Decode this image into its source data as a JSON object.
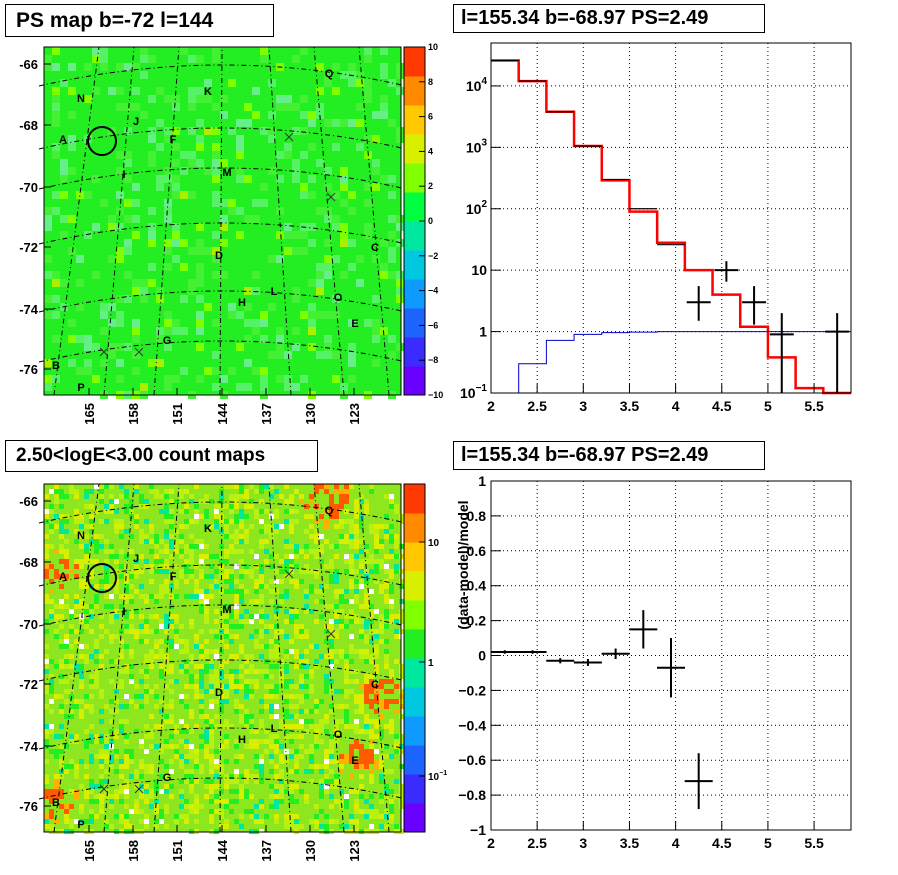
{
  "panels": {
    "ps_map": {
      "title": "PS map b=-72 l=144"
    },
    "spectrum": {
      "title": "l=155.34 b=-68.97 PS=2.49"
    },
    "count_map": {
      "title": "2.50<logE<3.00 count maps"
    },
    "residual": {
      "title": "l=155.34 b=-68.97 PS=2.49"
    }
  },
  "chart_data": [
    {
      "type": "heatmap",
      "title": "PS map b=-72 l=144",
      "map_y_ticks": [
        "-66",
        "-68",
        "-70",
        "-72",
        "-74",
        "-76"
      ],
      "map_y_values": [
        -66,
        -68,
        -70,
        -72,
        -74,
        -76
      ],
      "map_x_ticks": [
        "165",
        "158",
        "151",
        "144",
        "137",
        "130",
        "123"
      ],
      "colorbar": {
        "scale": "linear",
        "range": [
          -10,
          10
        ],
        "ticks": [
          "10",
          "8",
          "6",
          "4",
          "2",
          "0",
          "−2",
          "−4",
          "−6",
          "−8",
          "−10"
        ],
        "colors": [
          "#6a00ff",
          "#3a2cff",
          "#1e64ff",
          "#0f9aff",
          "#00c8e0",
          "#00e8a0",
          "#00ff40",
          "#7fff00",
          "#d8f000",
          "#ffc800",
          "#ff8a00",
          "#ff3a00"
        ],
        "background": "#22ee22"
      },
      "region_labels": [
        "Q",
        "N",
        "K",
        "A",
        "J",
        "F",
        "I",
        "M",
        "C",
        "D",
        "L",
        "O",
        "H",
        "E",
        "B",
        "G",
        "P"
      ],
      "markers": "x"
    },
    {
      "type": "line",
      "title": "l=155.34 b=-68.97 PS=2.49",
      "y_scale": "log",
      "xlim": [
        2,
        5.9
      ],
      "ylim": [
        0.1,
        50000
      ],
      "x_ticks": [
        "2",
        "2.5",
        "3",
        "3.5",
        "4",
        "4.5",
        "5",
        "5.5"
      ],
      "y_ticks": [
        "10^{-1}",
        "1",
        "10",
        "10^{2}",
        "10^{3}",
        "10^{4}"
      ],
      "bin_edges": [
        2.0,
        2.3,
        2.6,
        2.9,
        3.2,
        3.5,
        3.8,
        4.1,
        4.4,
        4.7,
        5.0,
        5.3,
        5.6,
        5.9
      ],
      "series": [
        {
          "color": "#ff0000",
          "values": [
            26000,
            12000,
            3800,
            1050,
            290,
            90,
            28,
            10,
            4,
            1.2,
            0.38,
            0.12,
            0.04
          ]
        },
        {
          "color": "#000000",
          "values": [
            26000,
            12000,
            3800,
            1050,
            300,
            100,
            26,
            10,
            3,
            3,
            0.8,
            1.0,
            0.7
          ]
        },
        {
          "color": "#0000cc",
          "values": [
            0.07,
            0.3,
            0.72,
            0.9,
            0.96,
            0.98,
            1.0,
            1.0,
            1.0,
            1.0,
            1.0,
            1.0,
            1.0
          ]
        }
      ],
      "data_points": [
        {
          "x": 4.25,
          "y": 3,
          "y_low": 1.5,
          "y_high": 5.5
        },
        {
          "x": 4.55,
          "y": 10,
          "y_low": 6.5,
          "y_high": 14
        },
        {
          "x": 4.85,
          "y": 3,
          "y_low": 1.3,
          "y_high": 5.5
        },
        {
          "x": 5.15,
          "y": 0.9,
          "y_low": 0.1,
          "y_high": 2.0
        },
        {
          "x": 5.75,
          "y": 1.0,
          "y_low": 0.1,
          "y_high": 2.0
        }
      ],
      "grid": true
    },
    {
      "type": "heatmap",
      "title": "2.50<logE<3.00 count maps",
      "map_y_ticks": [
        "-66",
        "-68",
        "-70",
        "-72",
        "-74",
        "-76"
      ],
      "map_y_values": [
        -66,
        -68,
        -70,
        -72,
        -74,
        -76
      ],
      "map_x_ticks": [
        "165",
        "158",
        "151",
        "144",
        "137",
        "130",
        "123"
      ],
      "colorbar": {
        "scale": "log",
        "ticks": [
          "10",
          "1",
          "10^{-1}"
        ],
        "colors": [
          "#6a00ff",
          "#3a2cff",
          "#1e64ff",
          "#0f9aff",
          "#00c8e0",
          "#00e8a0",
          "#22ee22",
          "#7fff00",
          "#d8f000",
          "#ffc800",
          "#ff8a00",
          "#ff3a00"
        ],
        "background": "#8ee61e"
      },
      "region_labels": [
        "Q",
        "N",
        "K",
        "A",
        "J",
        "F",
        "I",
        "M",
        "C",
        "D",
        "L",
        "O",
        "H",
        "E",
        "B",
        "G",
        "P"
      ],
      "markers": "x"
    },
    {
      "type": "scatter",
      "title": "l=155.34 b=-68.97 PS=2.49",
      "ylabel": "(data-model)/model",
      "xlim": [
        2,
        5.9
      ],
      "ylim": [
        -1,
        1
      ],
      "x_ticks": [
        "2",
        "2.5",
        "3",
        "3.5",
        "4",
        "4.5",
        "5",
        "5.5"
      ],
      "y_ticks": [
        "1",
        "0.8",
        "0.6",
        "0.4",
        "0.2",
        "0",
        "−0.2",
        "−0.4",
        "−0.6",
        "−0.8",
        "−1"
      ],
      "y_tick_values": [
        1,
        0.8,
        0.6,
        0.4,
        0.2,
        0,
        -0.2,
        -0.4,
        -0.6,
        -0.8,
        -1
      ],
      "points": [
        {
          "x": 2.15,
          "y": 0.02,
          "y_err": 0.01
        },
        {
          "x": 2.45,
          "y": 0.02,
          "y_err": 0.01
        },
        {
          "x": 2.75,
          "y": -0.03,
          "y_err": 0.015
        },
        {
          "x": 3.05,
          "y": -0.04,
          "y_err": 0.02
        },
        {
          "x": 3.35,
          "y": 0.01,
          "y_err": 0.03
        },
        {
          "x": 3.65,
          "y": 0.15,
          "y_err": 0.11
        },
        {
          "x": 3.95,
          "y": -0.07,
          "y_err": 0.17
        },
        {
          "x": 4.25,
          "y": -0.72,
          "y_err": 0.16
        }
      ],
      "grid": true
    }
  ]
}
